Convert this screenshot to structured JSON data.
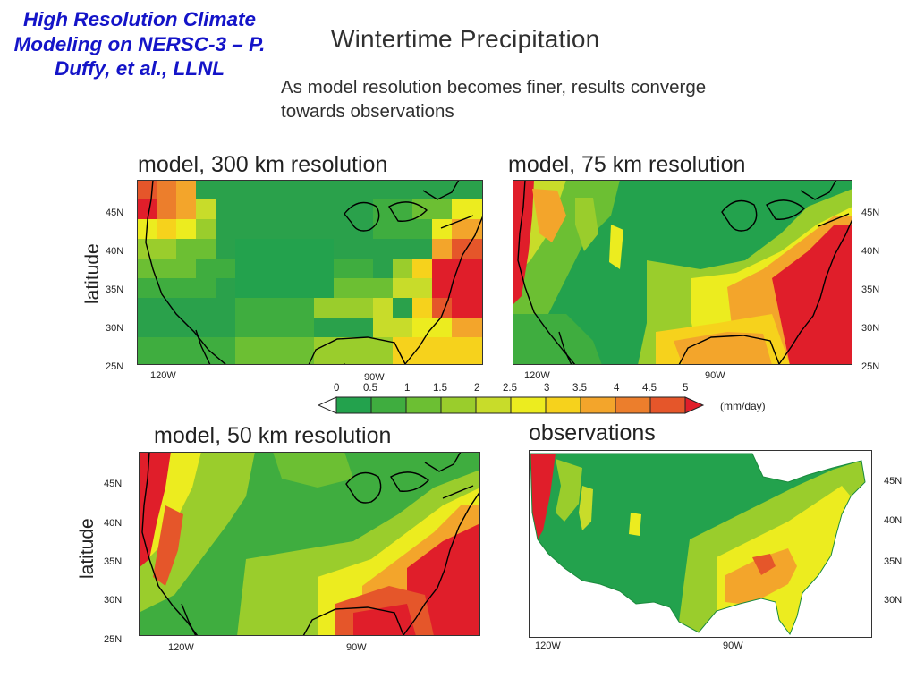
{
  "header": {
    "slide_title": "High Resolution Climate Modeling on NERSC-3 – P. Duffy, et al., LLNL",
    "main_title": "Wintertime Precipitation",
    "subtitle": "As model resolution becomes finer, results converge towards observations"
  },
  "panels": [
    {
      "title": "model, 300 km resolution",
      "y_axis_label": "latitude",
      "lat_ticks": [
        "45N",
        "40N",
        "35N",
        "30N",
        "25N"
      ],
      "lon_ticks": [
        "120W",
        "90W"
      ]
    },
    {
      "title": "model, 75 km resolution",
      "lat_ticks": [
        "45N",
        "40N",
        "35N",
        "30N",
        "25N"
      ],
      "lon_ticks": [
        "120W",
        "90W"
      ]
    },
    {
      "title": "model, 50 km resolution",
      "y_axis_label": "latitude",
      "lat_ticks": [
        "45N",
        "40N",
        "35N",
        "30N",
        "25N"
      ],
      "lon_ticks": [
        "120W",
        "90W"
      ]
    },
    {
      "title": "observations",
      "lat_ticks": [
        "45N",
        "40N",
        "35N",
        "30N"
      ],
      "lon_ticks": [
        "120W",
        "90W"
      ]
    }
  ],
  "legend": {
    "ticks": [
      "0",
      "0.5",
      "1",
      "1.5",
      "2",
      "2.5",
      "3",
      "3.5",
      "4",
      "4.5",
      "5"
    ],
    "units": "(mm/day)",
    "colors": [
      "#23a24d",
      "#3fad3f",
      "#6cbf33",
      "#9acd2c",
      "#c8dc2a",
      "#ecec1f",
      "#f6d21c",
      "#f3a52b",
      "#ec7e2c",
      "#e5562a"
    ],
    "under_color": "#ffffff",
    "over_color": "#e01e2a"
  }
}
